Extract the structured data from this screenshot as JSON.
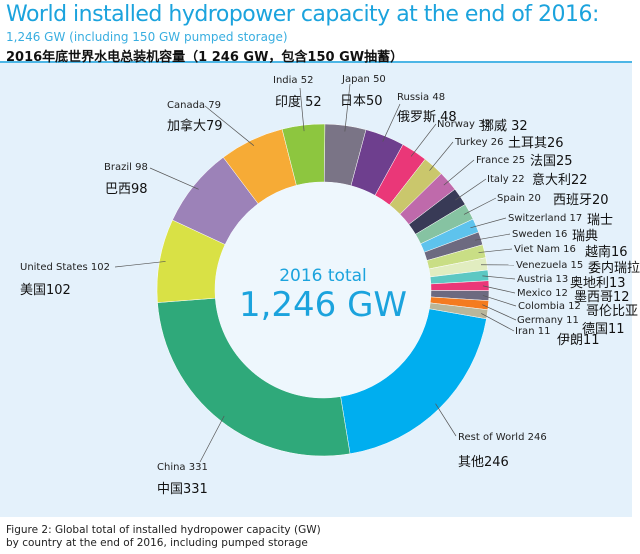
{
  "header": {
    "title": "World installed hydropower capacity at the end of 2016:",
    "subtitle": "1,246 GW (including 150 GW pumped storage)",
    "cn_title": "2016年底世界水电总装机容量（1 246 GW，包含150 GW抽蓄）"
  },
  "caption": {
    "line1": "Figure 2: Global total of installed hydropower capacity (GW)",
    "line2": "by country at the end of 2016, including pumped storage"
  },
  "chart_data": {
    "type": "pie",
    "donut": true,
    "title": "World installed hydropower capacity at the end of 2016",
    "center_label": "2016 total",
    "center_value": "1,246 GW",
    "unit": "GW",
    "slices": [
      {
        "name": "Rest of World",
        "cn": "其他246",
        "label": "Rest of World 246",
        "value": 246,
        "color": "#00aeef"
      },
      {
        "name": "China",
        "cn": "中国331",
        "label": "China 331",
        "value": 331,
        "color": "#2fa97a"
      },
      {
        "name": "United States",
        "cn": "美国102",
        "label": "United States 102",
        "value": 102,
        "color": "#d9e145"
      },
      {
        "name": "Brazil",
        "cn": "巴西98",
        "label": "Brazil 98",
        "value": 98,
        "color": "#9c82b8"
      },
      {
        "name": "Canada",
        "cn": "加拿大79",
        "label": "Canada 79",
        "value": 79,
        "color": "#f6ab36"
      },
      {
        "name": "India",
        "cn": "印度 52",
        "label": "India 52",
        "value": 52,
        "color": "#8dc63f"
      },
      {
        "name": "Japan",
        "cn": "日本50",
        "label": "Japan 50",
        "value": 50,
        "color": "#7a7486"
      },
      {
        "name": "Russia",
        "cn": "俄罗斯 48",
        "label": "Russia 48",
        "value": 48,
        "color": "#6e3f8e"
      },
      {
        "name": "Norway",
        "cn": "挪威 32",
        "label": "Norway 32",
        "value": 32,
        "color": "#ea3778"
      },
      {
        "name": "Turkey",
        "cn": "土耳其26",
        "label": "Turkey 26",
        "value": 26,
        "color": "#cac76c"
      },
      {
        "name": "France",
        "cn": "法国25",
        "label": "France 25",
        "value": 25,
        "color": "#bf6aab"
      },
      {
        "name": "Italy",
        "cn": "意大利22",
        "label": "Italy 22",
        "value": 22,
        "color": "#383a56"
      },
      {
        "name": "Spain",
        "cn": "西班牙20",
        "label": "Spain 20",
        "value": 20,
        "color": "#86c3a2"
      },
      {
        "name": "Switzerland",
        "cn": "瑞士",
        "label": "Switzerland 17",
        "value": 17,
        "color": "#5ec3ed"
      },
      {
        "name": "Sweden",
        "cn": "瑞典",
        "label": "Sweden 16",
        "value": 16,
        "color": "#6d6a80"
      },
      {
        "name": "Viet Nam",
        "cn": "越南16",
        "label": "Viet Nam 16",
        "value": 16,
        "color": "#c9de85"
      },
      {
        "name": "Venezuela",
        "cn": "委内瑞拉",
        "label": "Venezuela 15",
        "value": 15,
        "color": "#e1edc0"
      },
      {
        "name": "Austria",
        "cn": "奥地利13",
        "label": "Austria 13",
        "value": 13,
        "color": "#5cc8c3"
      },
      {
        "name": "Mexico",
        "cn": "墨西哥12",
        "label": "Mexico 12",
        "value": 12,
        "color": "#ea3778"
      },
      {
        "name": "Colombia",
        "cn": "哥伦比亚",
        "label": "Colombia 12",
        "value": 12,
        "color": "#6d6a80"
      },
      {
        "name": "Germany",
        "cn": "德国11",
        "label": "Germany 11",
        "value": 11,
        "color": "#f47b20"
      },
      {
        "name": "Iran",
        "cn": "伊朗11",
        "label": "Iran 11",
        "value": 11,
        "color": "#b9b69a"
      }
    ]
  }
}
